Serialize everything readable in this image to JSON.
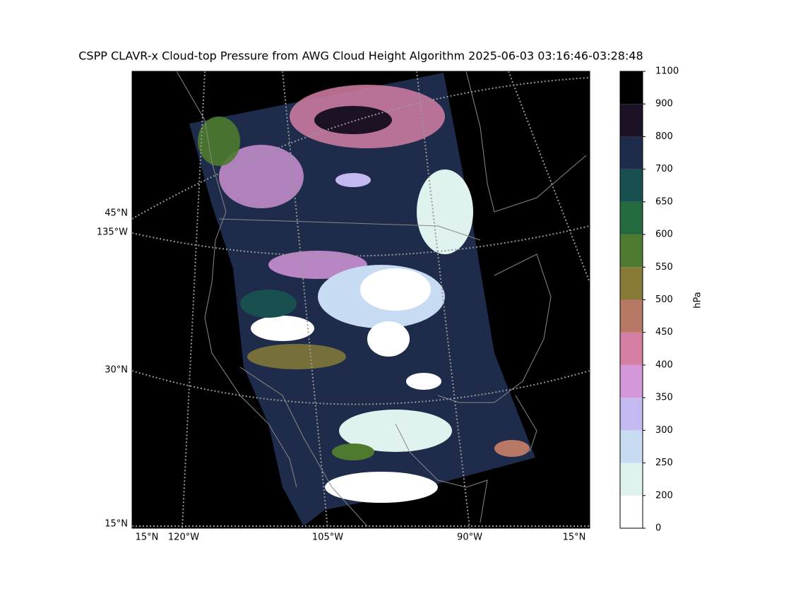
{
  "chart_data": {
    "type": "map",
    "title": "CSPP CLAVR-x Cloud-top Pressure from AWG Cloud Height Algorithm 2025-06-03 03:16:46-03:28:48",
    "left_labels": [
      "45°N",
      "135°W",
      "30°N",
      "15°N"
    ],
    "bottom_labels": [
      "15°N",
      "120°W",
      "105°W",
      "90°W",
      "15°N"
    ],
    "colorbar": {
      "label": "hPa",
      "ticks": [
        0,
        200,
        250,
        300,
        350,
        400,
        450,
        500,
        550,
        600,
        650,
        700,
        800,
        900,
        1100
      ],
      "colors": [
        "#ffffff",
        "#dff2ee",
        "#c7dcf2",
        "#c4b9f0",
        "#d497d9",
        "#d57fa4",
        "#b77866",
        "#877b37",
        "#4d7a2e",
        "#236a3e",
        "#17504f",
        "#1e2b4a",
        "#1d1225",
        "#000000"
      ]
    }
  }
}
